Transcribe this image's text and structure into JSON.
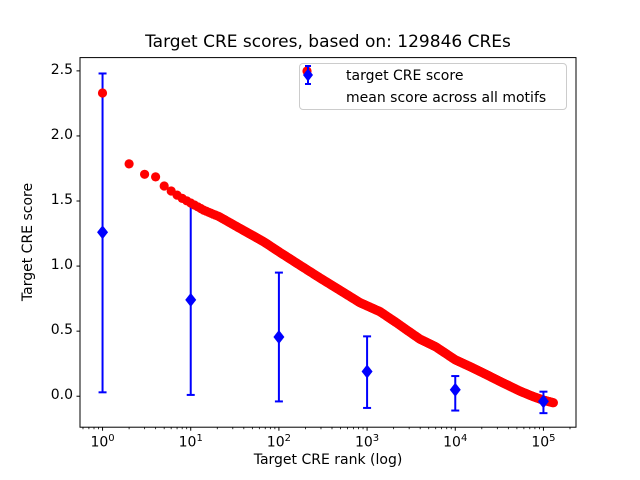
{
  "figure": {
    "background": "#ffffff"
  },
  "chart_data": {
    "type": "scatter",
    "title": "Target CRE scores, based on: 129846 CREs",
    "xlabel": "Target CRE rank (log)",
    "ylabel": "Target CRE score",
    "xscale": "log",
    "xlim": [
      0.555,
      234000
    ],
    "ylim": [
      -0.238,
      2.602
    ],
    "grid": false,
    "legend_position": "upper right",
    "x_ticks": [
      {
        "base": "10",
        "exp": "0",
        "value": 1
      },
      {
        "base": "10",
        "exp": "1",
        "value": 10
      },
      {
        "base": "10",
        "exp": "2",
        "value": 100
      },
      {
        "base": "10",
        "exp": "3",
        "value": 1000
      },
      {
        "base": "10",
        "exp": "4",
        "value": 10000
      },
      {
        "base": "10",
        "exp": "5",
        "value": 100000
      }
    ],
    "y_ticks": [
      {
        "label": "0.0",
        "value": 0.0
      },
      {
        "label": "0.5",
        "value": 0.5
      },
      {
        "label": "1.0",
        "value": 1.0
      },
      {
        "label": "1.5",
        "value": 1.5
      },
      {
        "label": "2.0",
        "value": 2.0
      },
      {
        "label": "2.5",
        "value": 2.5
      }
    ],
    "series": [
      {
        "name": "target CRE score",
        "marker": "circle",
        "color": "#ff0000",
        "marker_radius_px": 4.6,
        "n_points_depicted": 129846,
        "curve_control_points": [
          [
            1,
            2.33
          ],
          [
            2,
            1.785
          ],
          [
            3,
            1.705
          ],
          [
            4,
            1.685
          ],
          [
            5,
            1.615
          ],
          [
            6.5,
            1.56
          ],
          [
            8,
            1.52
          ],
          [
            10,
            1.485
          ],
          [
            14,
            1.43
          ],
          [
            21,
            1.38
          ],
          [
            31,
            1.315
          ],
          [
            46,
            1.25
          ],
          [
            68,
            1.185
          ],
          [
            100,
            1.11
          ],
          [
            170,
            1.01
          ],
          [
            290,
            0.91
          ],
          [
            490,
            0.815
          ],
          [
            825,
            0.72
          ],
          [
            1400,
            0.65
          ],
          [
            2150,
            0.565
          ],
          [
            3950,
            0.44
          ],
          [
            6000,
            0.38
          ],
          [
            10000,
            0.28
          ],
          [
            15000,
            0.225
          ],
          [
            22000,
            0.17
          ],
          [
            33000,
            0.11
          ],
          [
            54000,
            0.04
          ],
          [
            75000,
            0.0
          ],
          [
            100000,
            -0.03
          ],
          [
            129846,
            -0.05
          ]
        ]
      },
      {
        "name": "mean score across all motifs",
        "marker": "diamond",
        "color": "#0000ff",
        "points": [
          {
            "rank": 1,
            "mean": 1.26,
            "lo": 0.03,
            "hi": 2.48
          },
          {
            "rank": 10,
            "mean": 0.74,
            "lo": 0.01,
            "hi": 1.49
          },
          {
            "rank": 100,
            "mean": 0.455,
            "lo": -0.04,
            "hi": 0.95
          },
          {
            "rank": 1000,
            "mean": 0.19,
            "lo": -0.09,
            "hi": 0.46
          },
          {
            "rank": 10000,
            "mean": 0.05,
            "lo": -0.11,
            "hi": 0.155
          },
          {
            "rank": 100000,
            "mean": -0.04,
            "lo": -0.13,
            "hi": 0.035
          }
        ]
      }
    ],
    "legend": {
      "entries": [
        {
          "label": "target CRE score",
          "marker": "circle",
          "color": "#ff0000"
        },
        {
          "label": "mean score across all motifs",
          "marker": "diamond-errorbar",
          "color": "#0000ff"
        }
      ]
    }
  },
  "colors": {
    "axes": "#000000",
    "text": "#000000",
    "legend_border": "#cccccc",
    "background": "#ffffff"
  }
}
